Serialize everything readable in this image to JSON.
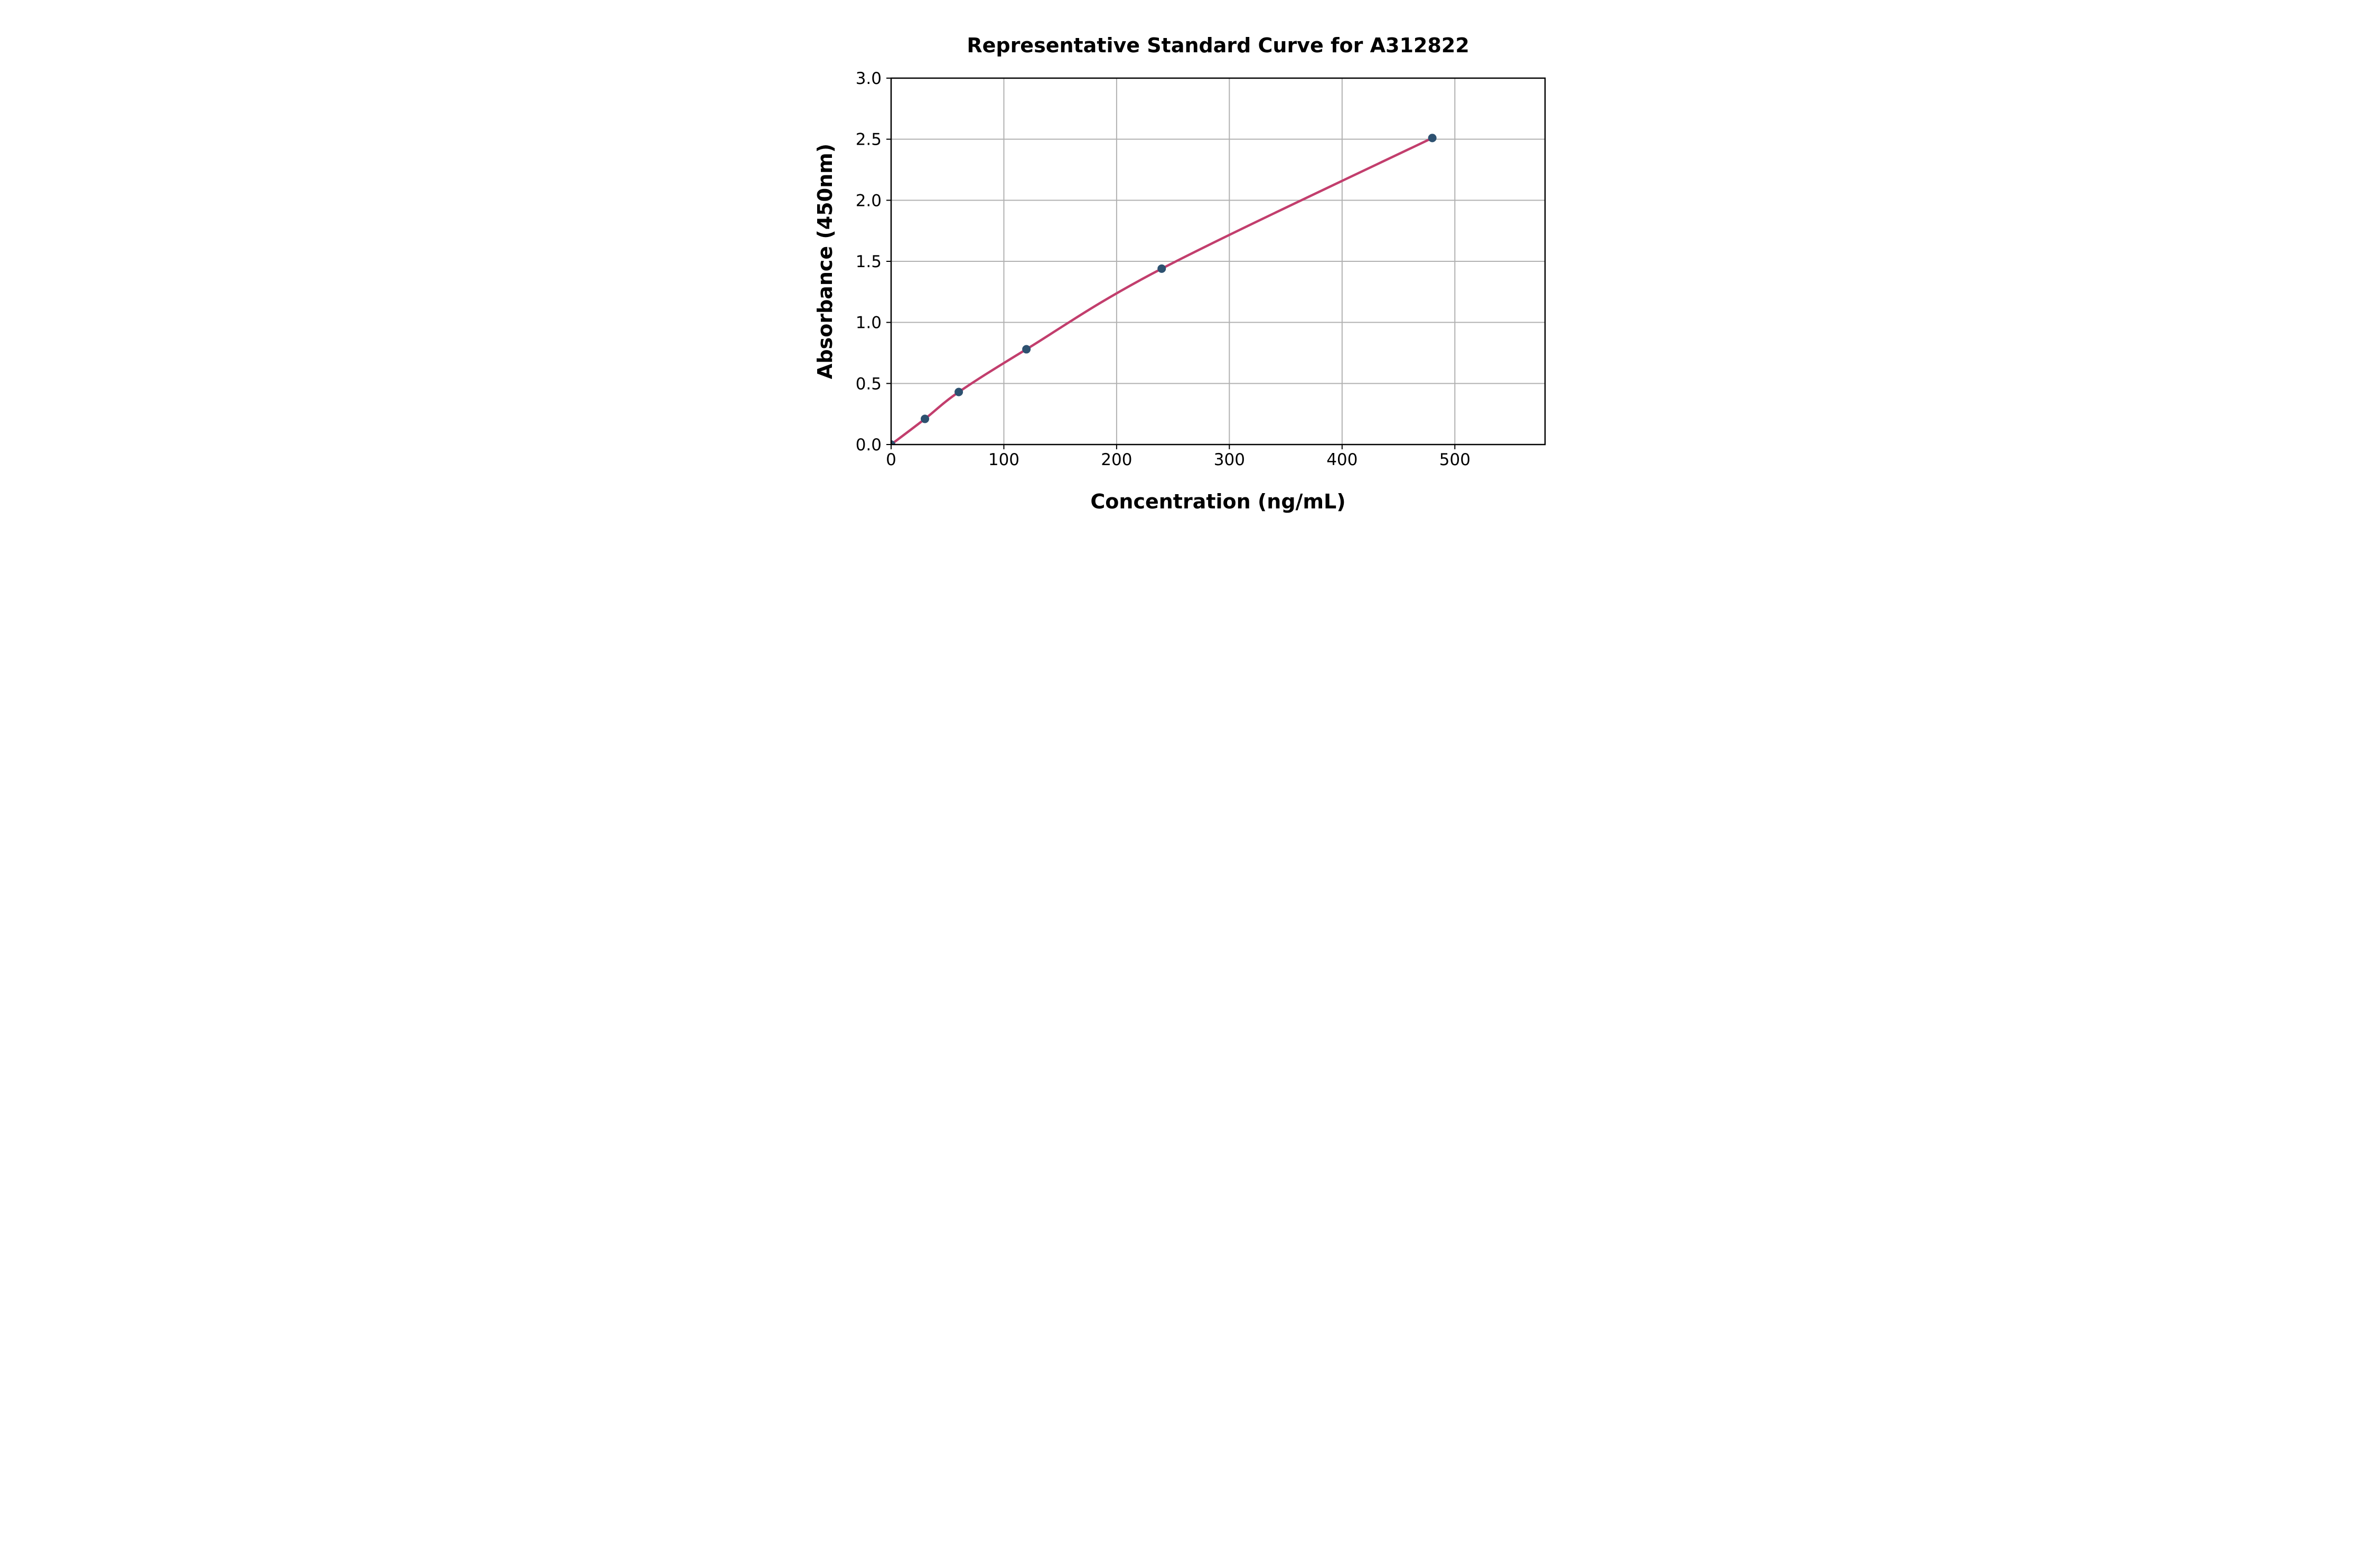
{
  "figure": {
    "background": "#ffffff"
  },
  "chart_data": {
    "type": "scatter",
    "title": "Representative Standard Curve for A312822",
    "xlabel": "Concentration (ng/mL)",
    "ylabel": "Absorbance (450nm)",
    "x": [
      0,
      30,
      60,
      120,
      240,
      480
    ],
    "y": [
      0.0,
      0.21,
      0.43,
      0.78,
      1.44,
      2.51
    ],
    "xlim": [
      0,
      580
    ],
    "ylim": [
      0,
      3.0
    ],
    "xticks": [
      0,
      100,
      200,
      300,
      400,
      500
    ],
    "xtick_labels": [
      "0",
      "100",
      "200",
      "300",
      "400",
      "500"
    ],
    "yticks": [
      0,
      0.5,
      1.0,
      1.5,
      2.0,
      2.5,
      3.0
    ],
    "ytick_labels": [
      "0.0",
      "0.5",
      "1.0",
      "1.5",
      "2.0",
      "2.5",
      "3.0"
    ],
    "grid": true,
    "legend": "none",
    "line_color": "#c23e6d",
    "marker_color": "#2d5170",
    "grid_color": "#b1b1b1",
    "axis_color": "#000000"
  }
}
